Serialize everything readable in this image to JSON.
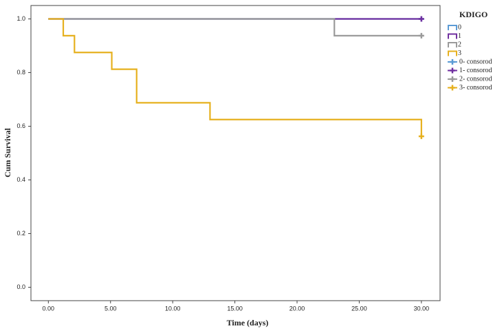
{
  "chart_data": {
    "type": "step",
    "x_label": "Time (days)",
    "y_label": "Cum Survival",
    "legend_title": "KDIGO",
    "xlim": [
      -1.4,
      31.5
    ],
    "ylim": [
      -0.05,
      1.05
    ],
    "xticks": [
      {
        "value": 0,
        "label": "0.00"
      },
      {
        "value": 5,
        "label": "5.00"
      },
      {
        "value": 10,
        "label": "10.00"
      },
      {
        "value": 15,
        "label": "15.00"
      },
      {
        "value": 20,
        "label": "20.00"
      },
      {
        "value": 25,
        "label": "25.00"
      },
      {
        "value": 30,
        "label": "30.00"
      }
    ],
    "yticks": [
      {
        "value": 0,
        "label": "0.0"
      },
      {
        "value": 0.2,
        "label": "0.2"
      },
      {
        "value": 0.4,
        "label": "0.4"
      },
      {
        "value": 0.6,
        "label": "0.6"
      },
      {
        "value": 0.8,
        "label": "0.8"
      },
      {
        "value": 1,
        "label": "1.0"
      }
    ],
    "series": [
      {
        "name": "0",
        "censor_name": "0- consorod",
        "color": "#5b9bd5",
        "x": [
          0,
          30
        ],
        "values": [
          1,
          1
        ],
        "censored_x": [
          30
        ],
        "censored_values": [
          1
        ]
      },
      {
        "name": "1",
        "censor_name": "1- consorod",
        "color": "#7030a0",
        "x": [
          0,
          30
        ],
        "values": [
          1,
          1
        ],
        "censored_x": [
          30
        ],
        "censored_values": [
          1
        ]
      },
      {
        "name": "2",
        "censor_name": "2- consorod",
        "color": "#9a9a9a",
        "x": [
          0,
          23,
          23,
          30
        ],
        "values": [
          1,
          1,
          0.9375,
          0.9375
        ],
        "censored_x": [
          30
        ],
        "censored_values": [
          0.9375
        ]
      },
      {
        "name": "3",
        "censor_name": "3- consorod",
        "color": "#e6b01e",
        "x": [
          0,
          1.2,
          1.2,
          2.1,
          2.1,
          5.1,
          5.1,
          7.1,
          7.1,
          13,
          13,
          30,
          30
        ],
        "values": [
          1,
          1,
          0.9375,
          0.9375,
          0.875,
          0.875,
          0.8125,
          0.8125,
          0.6875,
          0.6875,
          0.625,
          0.625,
          0.5625
        ],
        "censored_x": [
          30
        ],
        "censored_values": [
          0.5625
        ]
      }
    ]
  }
}
